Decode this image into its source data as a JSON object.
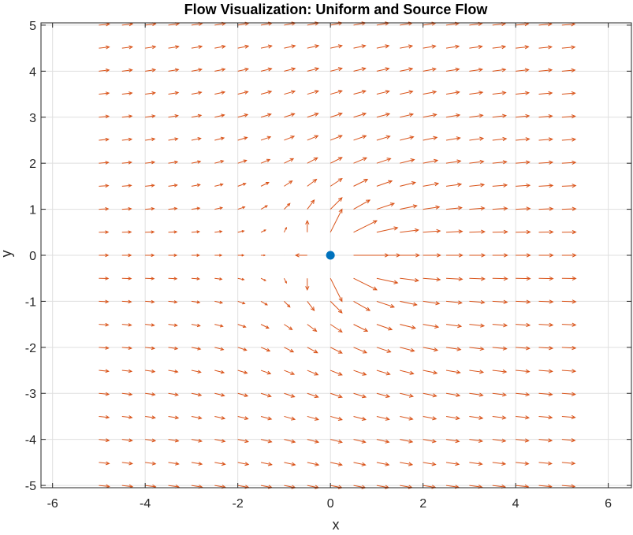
{
  "chart_data": {
    "type": "quiver",
    "title": "Flow Visualization: Uniform and Source Flow",
    "xlabel": "x",
    "ylabel": "y",
    "xlim": [
      -6.25,
      6.5
    ],
    "ylim": [
      -5.05,
      5.05
    ],
    "xticks": [
      -6,
      -4,
      -2,
      0,
      2,
      4,
      6
    ],
    "yticks": [
      -5,
      -4,
      -3,
      -2,
      -1,
      0,
      1,
      2,
      3,
      4,
      5
    ],
    "grid": true,
    "box": true,
    "field": {
      "description": "Uniform flow plus point source at origin",
      "x_range": [
        -5,
        5
      ],
      "y_range": [
        -5,
        5
      ],
      "spacing": 0.5,
      "uniform_velocity": 1,
      "source_strength": 6.28
    },
    "source_point": {
      "x": 0,
      "y": 0,
      "color": "#0072BD"
    },
    "arrow_color": "#D95319"
  }
}
